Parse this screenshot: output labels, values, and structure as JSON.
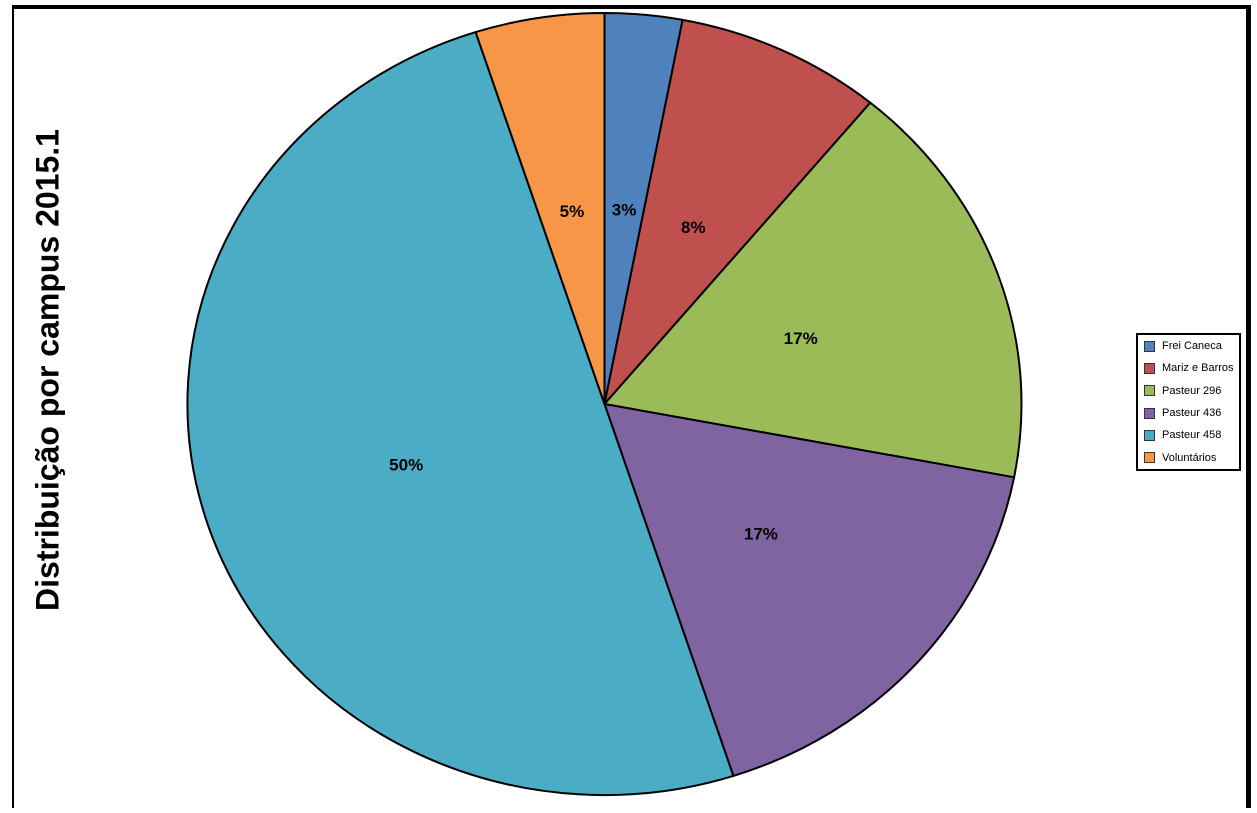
{
  "title": "Distribuição por campus 2015.1",
  "chart_data": {
    "type": "pie",
    "title": "Distribuição por campus 2015.1",
    "categories": [
      "Frei Caneca",
      "Mariz e Barros",
      "Pasteur 296",
      "Pasteur 436",
      "Pasteur 458",
      "Voluntários"
    ],
    "values": [
      3,
      8,
      17,
      17,
      50,
      5
    ],
    "value_labels": [
      "3%",
      "8%",
      "17%",
      "17%",
      "50%",
      "5%"
    ],
    "colors": [
      "#4F81BD",
      "#C0504D",
      "#9BBB59",
      "#8064A2",
      "#4BACC6",
      "#F79646"
    ],
    "slice_border_color": "#000000",
    "label_color": "#000000",
    "start_angle_deg": 0,
    "direction": "clockwise",
    "legend_position": "right",
    "title_position": "left-rotated"
  }
}
